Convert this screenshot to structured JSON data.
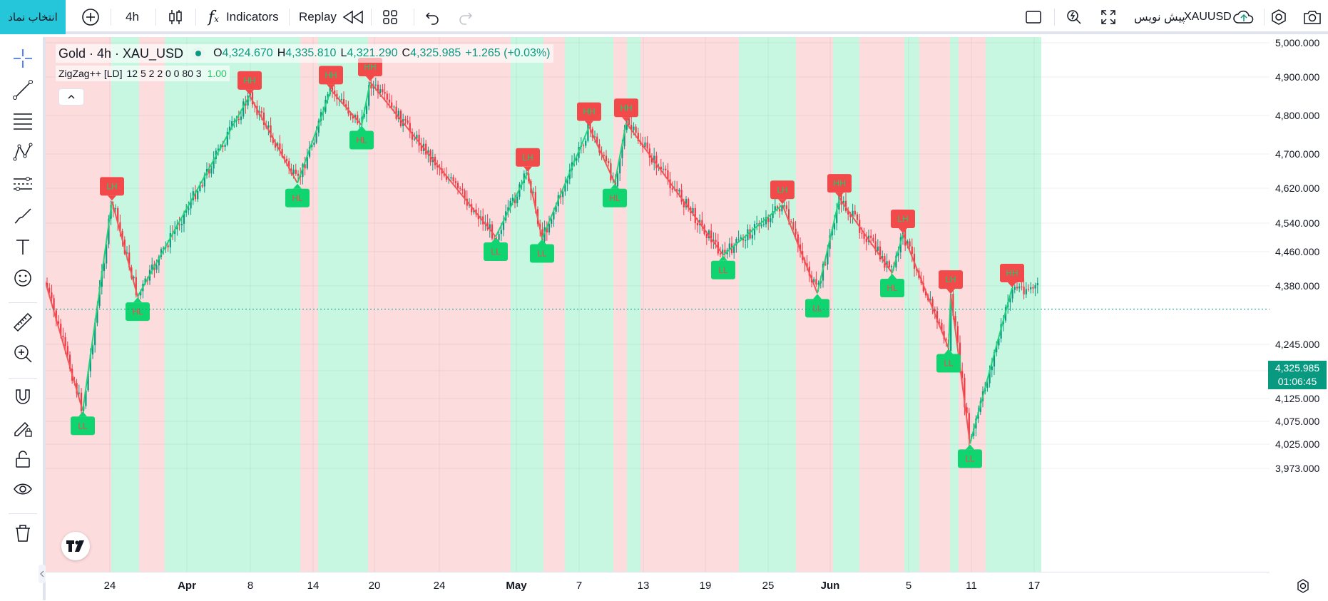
{
  "topbar": {
    "symbol_button": "انتخاب نماد",
    "interval": "4h",
    "indicators_label": "Indicators",
    "replay_label": "Replay",
    "right_symbol": "XAUUSD",
    "right_label": "پیش نویس"
  },
  "legend": {
    "title": "Gold · 4h · XAU_USD",
    "o_key": "O",
    "o_val": "4,324.670",
    "h_key": "H",
    "h_val": "4,335.810",
    "l_key": "L",
    "l_val": "4,321.290",
    "c_key": "C",
    "c_val": "4,325.985",
    "change": "+1.265 (+0.03%)",
    "indicator_name": "ZigZag++ [LD]",
    "indicator_params": "12 5 2 2 0 0 80 3",
    "indicator_value": "1.00"
  },
  "price_axis": {
    "ticks": [
      "5,000.000",
      "4,900.000",
      "4,800.000",
      "4,700.000",
      "4,620.000",
      "4,540.000",
      "4,460.000",
      "4,380.000",
      "4,245.000",
      "4,185.000",
      "4,125.000",
      "4,075.000",
      "4,025.000",
      "3,973.000"
    ],
    "current_price": "4,325.985",
    "countdown": "01:06:45"
  },
  "time_axis": {
    "ticks": [
      "24",
      "Apr",
      "8",
      "14",
      "20",
      "24",
      "May",
      "7",
      "13",
      "19",
      "25",
      "Jun",
      "5",
      "11",
      "17"
    ]
  },
  "colors": {
    "bull": "#089981",
    "bear": "#f23645",
    "bull_zone": "#c8f7e1",
    "bear_zone": "#fddcdd",
    "zig_up": "#22d37a",
    "zig_down": "#f25757",
    "accent": "#26c6da"
  },
  "chart_data": {
    "type": "candlestick",
    "symbol": "XAU_USD",
    "interval": "4h",
    "ylim": [
      3973,
      5000
    ],
    "zigzag_pivots": [
      {
        "label": "LL",
        "price": 4098
      },
      {
        "label": "LH",
        "price": 4590
      },
      {
        "label": "HL",
        "price": 4355
      },
      {
        "label": "HH",
        "price": 4852
      },
      {
        "label": "HL",
        "price": 4632
      },
      {
        "label": "HH",
        "price": 4866
      },
      {
        "label": "HL",
        "price": 4775
      },
      {
        "label": "HH",
        "price": 4887
      },
      {
        "label": "LL",
        "price": 4502
      },
      {
        "label": "LH",
        "price": 4657
      },
      {
        "label": "LL",
        "price": 4497
      },
      {
        "label": "HH",
        "price": 4771
      },
      {
        "label": "HL",
        "price": 4632
      },
      {
        "label": "HH",
        "price": 4781
      },
      {
        "label": "LL",
        "price": 4452
      },
      {
        "label": "LH",
        "price": 4582
      },
      {
        "label": "LL",
        "price": 4363
      },
      {
        "label": "HH",
        "price": 4597
      },
      {
        "label": "HL",
        "price": 4410
      },
      {
        "label": "LH",
        "price": 4510
      },
      {
        "label": "LL",
        "price": 4236
      },
      {
        "label": "LH",
        "price": 4360
      },
      {
        "label": "LL",
        "price": 4026
      },
      {
        "label": "HH",
        "price": 4375
      }
    ],
    "last_price": 4325.985
  }
}
